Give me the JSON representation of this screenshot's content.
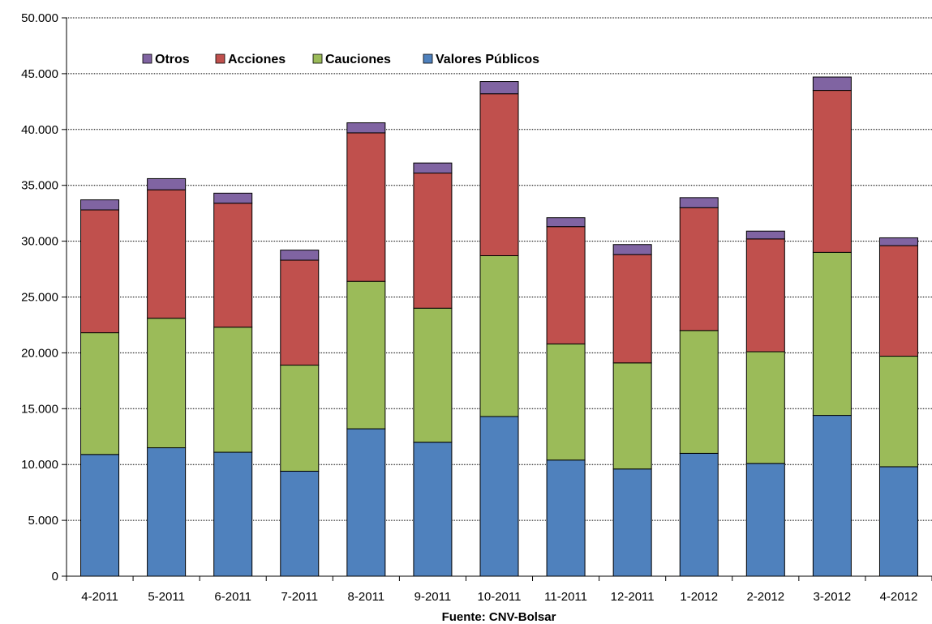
{
  "chart_data": {
    "type": "bar",
    "stacked": true,
    "categories": [
      "4-2011",
      "5-2011",
      "6-2011",
      "7-2011",
      "8-2011",
      "9-2011",
      "10-2011",
      "11-2011",
      "12-2011",
      "1-2012",
      "2-2012",
      "3-2012",
      "4-2012"
    ],
    "series": [
      {
        "name": "Valores Públicos",
        "color": "#4f81bd",
        "values": [
          10900,
          11500,
          11100,
          9400,
          13200,
          12000,
          14300,
          10400,
          9600,
          11000,
          10100,
          14400,
          9800
        ]
      },
      {
        "name": "Cauciones",
        "color": "#9bbb59",
        "values": [
          10900,
          11600,
          11200,
          9500,
          13200,
          12000,
          14400,
          10400,
          9500,
          11000,
          10000,
          14600,
          9900
        ]
      },
      {
        "name": "Acciones",
        "color": "#c0504d",
        "values": [
          11000,
          11500,
          11100,
          9400,
          13300,
          12100,
          14500,
          10500,
          9700,
          11000,
          10100,
          14500,
          9900
        ]
      },
      {
        "name": "Otros",
        "color": "#8064a2",
        "values": [
          900,
          1000,
          900,
          900,
          900,
          900,
          1100,
          800,
          900,
          900,
          700,
          1200,
          700
        ]
      }
    ],
    "legend_order": [
      "Otros",
      "Acciones",
      "Cauciones",
      "Valores Públicos"
    ],
    "y_ticks": [
      "0",
      "5.000",
      "10.000",
      "15.000",
      "20.000",
      "25.000",
      "30.000",
      "35.000",
      "40.000",
      "45.000",
      "50.000"
    ],
    "ylim": [
      0,
      50000
    ],
    "xlabel": "Fuente:  CNV-Bolsar",
    "ylabel": "",
    "title": "",
    "grid": true,
    "legend_position": "top-left"
  }
}
